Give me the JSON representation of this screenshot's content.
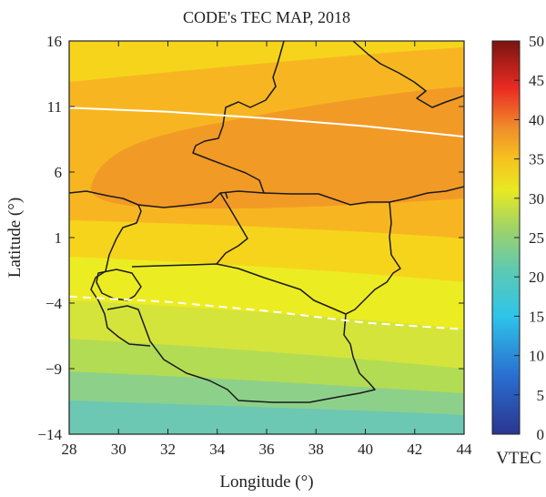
{
  "chart_data": {
    "type": "heatmap",
    "title": "CODE's TEC MAP, 2018",
    "xlabel": "Longitude (°)",
    "ylabel": "Latitude (°)",
    "xlim": [
      28,
      44
    ],
    "ylim": [
      -14,
      16
    ],
    "x_ticks": [
      "28",
      "30",
      "32",
      "34",
      "36",
      "38",
      "40",
      "42",
      "44"
    ],
    "y_ticks": [
      "16",
      "11",
      "6",
      "1",
      "−4",
      "−9",
      "−14"
    ],
    "colorbar": {
      "label": "VTEC",
      "range": [
        0,
        50
      ],
      "ticks": [
        "50",
        "45",
        "40",
        "35",
        "30",
        "25",
        "20",
        "15",
        "10",
        "5",
        "0"
      ]
    },
    "tec_bands": [
      {
        "min": 22,
        "max": 24,
        "color": "#6cc7b3"
      },
      {
        "min": 24,
        "max": 26,
        "color": "#8dd08a"
      },
      {
        "min": 26,
        "max": 28,
        "color": "#b3dc55"
      },
      {
        "min": 28,
        "max": 30,
        "color": "#d5e43a"
      },
      {
        "min": 30,
        "max": 32,
        "color": "#ecec22"
      },
      {
        "min": 32,
        "max": 34,
        "color": "#f6d41c"
      },
      {
        "min": 34,
        "max": 36,
        "color": "#f7b621"
      },
      {
        "min": 36,
        "max": 38,
        "color": "#f29a26"
      }
    ],
    "contours": [
      {
        "style": "solid",
        "color": "#ffffff",
        "points": [
          [
            28,
            10.9
          ],
          [
            32,
            10.6
          ],
          [
            36,
            10.1
          ],
          [
            40,
            9.5
          ],
          [
            44,
            8.7
          ]
        ]
      },
      {
        "style": "dashed",
        "color": "#ffffff",
        "points": [
          [
            28,
            -3.5
          ],
          [
            32,
            -3.9
          ],
          [
            36,
            -4.6
          ],
          [
            40,
            -5.5
          ],
          [
            44,
            -6.0
          ]
        ]
      }
    ]
  }
}
